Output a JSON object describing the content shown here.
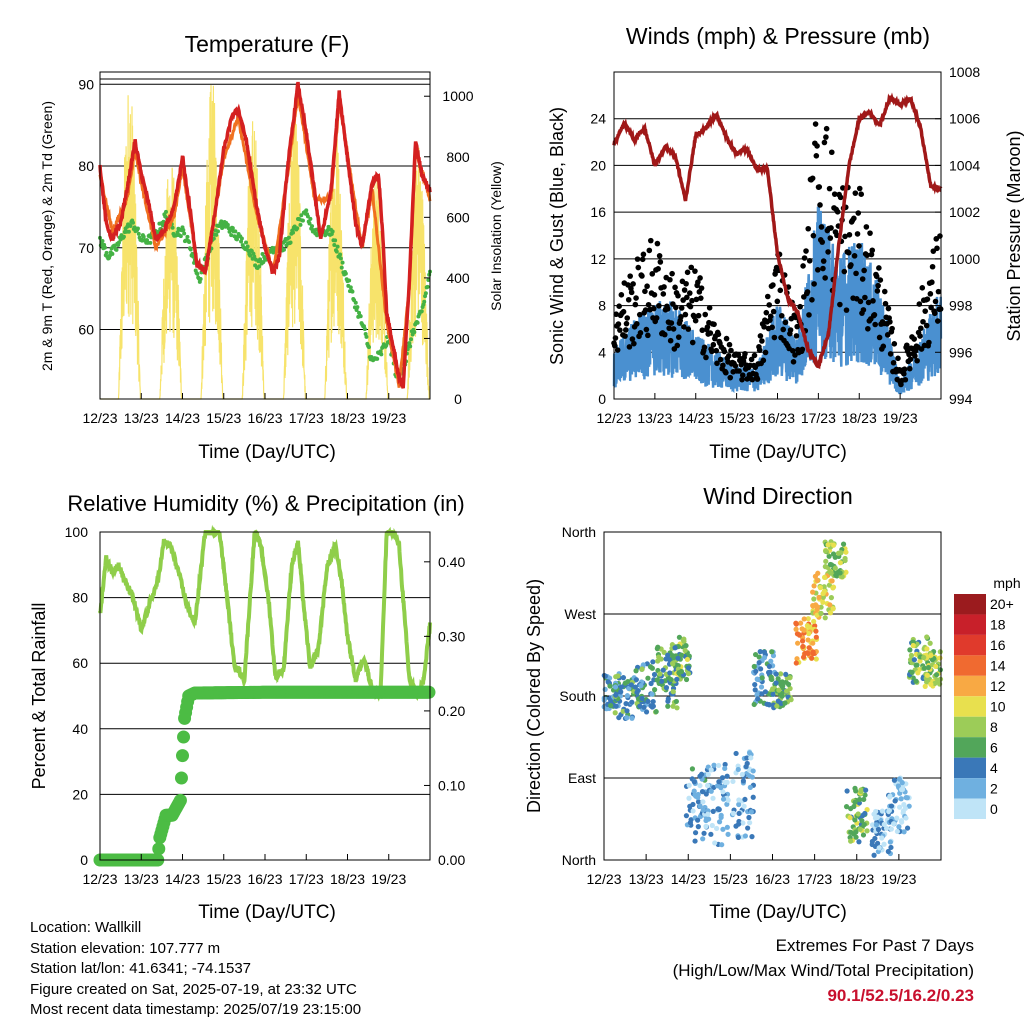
{
  "colors": {
    "temp_red": "#d42020",
    "temp_orange": "#f07020",
    "dewpoint_green": "#44b244",
    "insolation_yellow": "#f7e36b",
    "wind_blue": "#4a90d0",
    "gust_black": "#000000",
    "pressure_maroon": "#a01818",
    "rh_light_green": "#8fce4a",
    "precip_green": "#4cbc44",
    "extremes_red": "#c8102e"
  },
  "chart_data": [
    {
      "type": "line",
      "title": "Temperature (F)",
      "xlabel": "Time (Day/UTC)",
      "ylabel": "2m & 9m T (Red, Orange) & 2m Td (Green)",
      "y2label": "Solar Insolation (Yellow)",
      "x_ticks": [
        "12/23",
        "13/23",
        "14/23",
        "15/23",
        "16/23",
        "17/23",
        "18/23",
        "19/23"
      ],
      "ylim": [
        51.5,
        91.5
      ],
      "y_ticks": [
        60,
        70,
        80,
        90
      ],
      "y2lim": [
        0,
        1080
      ],
      "y2_ticks": [
        0,
        200,
        400,
        600,
        800,
        1000
      ],
      "grid": "horizontal",
      "series": [
        {
          "name": "2m T",
          "x": [
            0,
            0.15,
            0.3,
            0.5,
            0.65,
            0.85,
            1.0,
            1.2,
            1.35,
            1.55,
            1.8,
            2.0,
            2.2,
            2.35,
            2.55,
            2.75,
            3.0,
            3.2,
            3.35,
            3.55,
            3.8,
            4.0,
            4.2,
            4.35,
            4.55,
            4.8,
            5.0,
            5.2,
            5.35,
            5.6,
            5.8,
            6.0,
            6.2,
            6.35,
            6.6,
            6.75,
            6.85,
            6.95,
            7.1,
            7.25,
            7.35,
            7.5,
            7.65,
            7.8,
            8.0
          ],
          "values": [
            80,
            73,
            71,
            73,
            77,
            83,
            79,
            75,
            71,
            72,
            75,
            81,
            74,
            68,
            67,
            73,
            82,
            86,
            87,
            83,
            75,
            70,
            67,
            69,
            80,
            90,
            84,
            77,
            71,
            77,
            89,
            81,
            73,
            70,
            78,
            79,
            72,
            62,
            58,
            54,
            53,
            66,
            83,
            79,
            77
          ]
        },
        {
          "name": "9m T",
          "x": [
            0,
            0.3,
            0.65,
            0.85,
            1.0,
            1.35,
            1.8,
            2.0,
            2.35,
            2.55,
            3.0,
            3.35,
            3.8,
            4.2,
            4.55,
            4.8,
            5.2,
            5.6,
            5.8,
            6.35,
            6.6,
            6.95,
            7.25,
            7.5,
            7.65,
            8.0
          ],
          "values": [
            79,
            72,
            76,
            82,
            78,
            70,
            74,
            80,
            68,
            67,
            81,
            86,
            74,
            67,
            79,
            89,
            76,
            76,
            88,
            70,
            77,
            61,
            53,
            65,
            82,
            76
          ]
        },
        {
          "name": "2m Td",
          "x": [
            0,
            0.2,
            0.4,
            0.6,
            0.8,
            1.0,
            1.2,
            1.4,
            1.6,
            1.8,
            2.0,
            2.2,
            2.4,
            2.6,
            2.8,
            3.0,
            3.2,
            3.4,
            3.6,
            3.8,
            4.0,
            4.2,
            4.4,
            4.6,
            4.8,
            5.0,
            5.2,
            5.4,
            5.6,
            5.8,
            6.0,
            6.2,
            6.4,
            6.6,
            6.8,
            7.0,
            7.2,
            7.4,
            7.6,
            7.8,
            8.0
          ],
          "values": [
            71,
            69,
            70,
            72,
            73,
            71,
            71,
            72,
            74,
            72,
            72,
            70,
            66,
            69,
            72,
            73,
            72,
            71,
            70,
            68,
            69,
            70,
            70,
            71,
            73,
            74,
            72,
            72,
            72,
            69,
            66,
            63,
            60,
            56,
            57,
            59,
            54,
            56,
            60,
            62,
            67
          ]
        },
        {
          "name": "Solar Insolation",
          "axis": "y2",
          "day_peaks": [
            1070,
            820,
            1060,
            950,
            960,
            920,
            770,
            870
          ]
        }
      ]
    },
    {
      "type": "scatter",
      "title": "Winds (mph) & Pressure (mb)",
      "xlabel": "Time (Day/UTC)",
      "ylabel": "Sonic Wind & Gust (Blue, Black)",
      "y2label": "Station Pressure (Maroon)",
      "x_ticks": [
        "12/23",
        "13/23",
        "14/23",
        "15/23",
        "16/23",
        "17/23",
        "18/23",
        "19/23"
      ],
      "ylim": [
        0,
        28
      ],
      "y_ticks": [
        0,
        4,
        8,
        12,
        16,
        20,
        24
      ],
      "y2lim": [
        994,
        1008
      ],
      "y2_ticks": [
        994,
        996,
        998,
        1000,
        1002,
        1004,
        1006,
        1008
      ],
      "grid": "horizontal",
      "series": [
        {
          "name": "Wind",
          "x": [
            0,
            0.5,
            1,
            1.5,
            2,
            2.5,
            3,
            3.5,
            4,
            4.5,
            5,
            5.5,
            6,
            6.5,
            7,
            7.5,
            8
          ],
          "values": [
            3,
            5,
            6,
            6,
            4,
            3,
            2,
            2,
            6,
            4,
            12,
            9,
            10,
            7,
            1,
            4,
            7
          ]
        },
        {
          "name": "Gust",
          "x": [
            0,
            0.5,
            1,
            1.5,
            2,
            2.5,
            3,
            3.5,
            4,
            4.5,
            5,
            5.5,
            6,
            6.5,
            7,
            7.5,
            8
          ],
          "values": [
            7,
            9,
            11,
            8,
            9,
            5,
            3,
            3,
            11,
            5,
            21,
            15,
            14,
            9,
            2,
            7,
            12
          ]
        },
        {
          "name": "Pressure",
          "axis": "y2",
          "x": [
            0,
            0.25,
            0.5,
            0.75,
            1.0,
            1.25,
            1.5,
            1.75,
            2.0,
            2.25,
            2.5,
            2.75,
            3.0,
            3.25,
            3.5,
            3.75,
            4.0,
            4.25,
            4.5,
            4.75,
            5.0,
            5.25,
            5.5,
            5.75,
            6.0,
            6.25,
            6.5,
            6.75,
            7.0,
            7.25,
            7.5,
            7.75,
            8.0
          ],
          "values": [
            1004.9,
            1005.8,
            1005.1,
            1005.6,
            1004.0,
            1004.8,
            1004.4,
            1002.5,
            1005.3,
            1005.6,
            1006.2,
            1005.2,
            1004.5,
            1004.7,
            1003.8,
            1003.9,
            1000.2,
            998.3,
            997.7,
            996.1,
            995.4,
            996.8,
            1000.6,
            1004.0,
            1006.0,
            1006.3,
            1005.7,
            1006.9,
            1006.6,
            1006.9,
            1005.6,
            1003.1,
            1003.0
          ]
        }
      ]
    },
    {
      "type": "line",
      "title": "Relative Humidity (%) & Precipitation (in)",
      "xlabel": "Time (Day/UTC)",
      "ylabel": "Percent & Total Rainfall",
      "x_ticks": [
        "12/23",
        "13/23",
        "14/23",
        "15/23",
        "16/23",
        "17/23",
        "18/23",
        "19/23"
      ],
      "ylim": [
        0,
        100
      ],
      "y_ticks": [
        0,
        20,
        40,
        60,
        80,
        100
      ],
      "y2lim": [
        0,
        0.44
      ],
      "y2_ticks": [
        "0.00",
        "0.10",
        "0.20",
        "0.30",
        "0.40"
      ],
      "grid": "horizontal",
      "series": [
        {
          "name": "Relative Humidity",
          "x": [
            0,
            0.15,
            0.3,
            0.45,
            0.6,
            0.8,
            1.0,
            1.2,
            1.4,
            1.55,
            1.7,
            1.9,
            2.1,
            2.3,
            2.55,
            2.75,
            2.9,
            3.1,
            3.25,
            3.5,
            3.75,
            3.9,
            4.1,
            4.25,
            4.45,
            4.65,
            4.8,
            4.95,
            5.1,
            5.3,
            5.5,
            5.7,
            5.85,
            6.0,
            6.2,
            6.4,
            6.6,
            6.8,
            6.95,
            7.1,
            7.25,
            7.5,
            7.7,
            7.85,
            8.0
          ],
          "values": [
            75,
            92,
            88,
            90,
            85,
            80,
            70,
            78,
            85,
            97,
            96,
            88,
            78,
            72,
            100,
            100,
            100,
            78,
            60,
            55,
            100,
            96,
            78,
            56,
            58,
            90,
            97,
            76,
            58,
            65,
            89,
            96,
            86,
            68,
            55,
            62,
            52,
            50,
            100,
            100,
            96,
            55,
            50,
            55,
            72
          ]
        },
        {
          "name": "Precipitation",
          "axis": "y2",
          "x": [
            0,
            1.4,
            1.45,
            1.6,
            1.75,
            1.95,
            2.0,
            2.05,
            2.15,
            2.3,
            4.0,
            8.0
          ],
          "values": [
            0,
            0,
            0.03,
            0.06,
            0.06,
            0.08,
            0.14,
            0.19,
            0.22,
            0.224,
            0.225,
            0.225
          ]
        }
      ]
    },
    {
      "type": "scatter",
      "title": "Wind Direction",
      "xlabel": "Time (Day/UTC)",
      "ylabel": "Direction (Colored By Speed)",
      "x_ticks": [
        "12/23",
        "13/23",
        "14/23",
        "15/23",
        "16/23",
        "17/23",
        "18/23",
        "19/23"
      ],
      "y_ticks": [
        "North",
        "East",
        "South",
        "West",
        "North"
      ],
      "ylim": [
        0,
        360
      ],
      "colorbar": {
        "title": "mph",
        "labels": [
          "20+",
          "18",
          "16",
          "14",
          "12",
          "10",
          "8",
          "6",
          "4",
          "2",
          "0"
        ],
        "colors": [
          "#9b1b1e",
          "#c8202a",
          "#e03a2c",
          "#f06a30",
          "#f8a944",
          "#e8e04e",
          "#9ccc58",
          "#52a65a",
          "#3a78b8",
          "#6fb0e0",
          "#bfe4f7"
        ]
      },
      "clusters": [
        {
          "t": 0.1,
          "dir": 185,
          "spread": 20,
          "speed": 4
        },
        {
          "t": 0.5,
          "dir": 180,
          "spread": 25,
          "speed": 5
        },
        {
          "t": 1.0,
          "dir": 190,
          "spread": 30,
          "speed": 5
        },
        {
          "t": 1.5,
          "dir": 200,
          "spread": 35,
          "speed": 6
        },
        {
          "t": 1.8,
          "dir": 220,
          "spread": 25,
          "speed": 7
        },
        {
          "t": 2.2,
          "dir": 60,
          "spread": 40,
          "speed": 3
        },
        {
          "t": 2.7,
          "dir": 60,
          "spread": 45,
          "speed": 2
        },
        {
          "t": 3.3,
          "dir": 70,
          "spread": 50,
          "speed": 2
        },
        {
          "t": 3.8,
          "dir": 200,
          "spread": 30,
          "speed": 4
        },
        {
          "t": 4.2,
          "dir": 185,
          "spread": 20,
          "speed": 6
        },
        {
          "t": 4.8,
          "dir": 240,
          "spread": 25,
          "speed": 12
        },
        {
          "t": 5.2,
          "dir": 290,
          "spread": 25,
          "speed": 10
        },
        {
          "t": 5.5,
          "dir": 330,
          "spread": 20,
          "speed": 8
        },
        {
          "t": 6.0,
          "dir": 50,
          "spread": 30,
          "speed": 7
        },
        {
          "t": 6.6,
          "dir": 30,
          "spread": 25,
          "speed": 2
        },
        {
          "t": 7.0,
          "dir": 60,
          "spread": 30,
          "speed": 1
        },
        {
          "t": 7.5,
          "dir": 220,
          "spread": 25,
          "speed": 7
        },
        {
          "t": 7.8,
          "dir": 210,
          "spread": 20,
          "speed": 8
        }
      ]
    }
  ],
  "station": {
    "location": "Location: Wallkill",
    "elevation": "Station elevation: 107.777 m",
    "latlon": "Station lat/lon: 41.6341; -74.1537",
    "created": "Figure created on Sat, 2025-07-19, at 23:32 UTC",
    "latest": "Most recent data timestamp: 2025/07/19 23:15:00"
  },
  "extremes": {
    "line1": "Extremes For Past 7 Days",
    "line2": "(High/Low/Max Wind/Total Precipitation)",
    "values": "90.1/52.5/16.2/0.23"
  }
}
